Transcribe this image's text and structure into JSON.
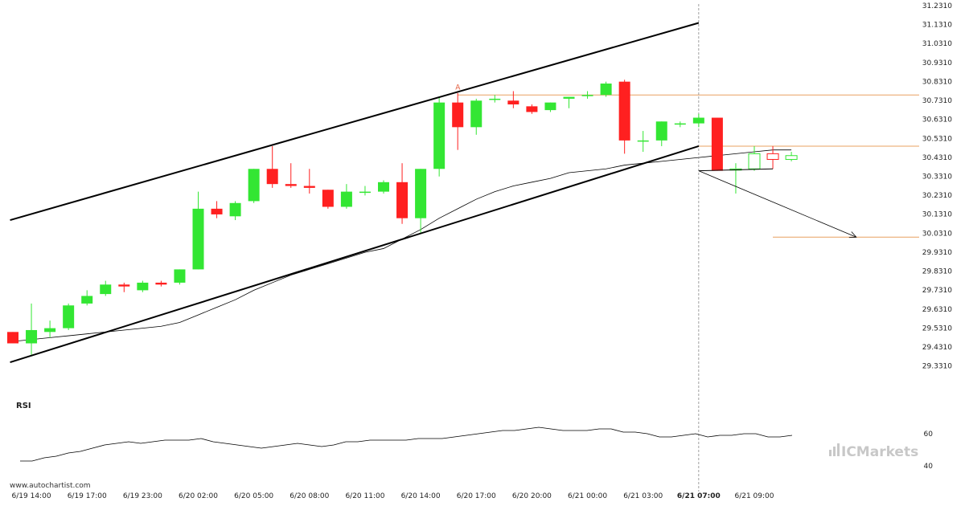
{
  "chart_data": {
    "type": "candlestick",
    "price_axis": {
      "ylim": [
        29.253,
        31.231
      ],
      "ticks": [
        "31.2310",
        "31.1310",
        "31.0310",
        "30.9310",
        "30.8310",
        "30.7310",
        "30.6310",
        "30.5310",
        "30.4310",
        "30.3310",
        "30.2310",
        "30.1310",
        "30.0310",
        "29.9310",
        "29.8310",
        "29.7310",
        "29.6310",
        "29.5310",
        "29.4310",
        "29.3310"
      ]
    },
    "x_ticks": [
      {
        "bar": 1,
        "label": "6/19 14:00"
      },
      {
        "bar": 4,
        "label": "6/19 17:00"
      },
      {
        "bar": 7,
        "label": "6/19 23:00"
      },
      {
        "bar": 10,
        "label": "6/20 02:00"
      },
      {
        "bar": 13,
        "label": "6/20 05:00"
      },
      {
        "bar": 16,
        "label": "6/20 08:00"
      },
      {
        "bar": 19,
        "label": "6/20 11:00"
      },
      {
        "bar": 22,
        "label": "6/20 14:00"
      },
      {
        "bar": 25,
        "label": "6/20 17:00"
      },
      {
        "bar": 28,
        "label": "6/20 20:00"
      },
      {
        "bar": 31,
        "label": "6/21 00:00"
      },
      {
        "bar": 34,
        "label": "6/21 03:00"
      },
      {
        "bar": 37,
        "label": "6/21 07:00",
        "bold": true
      },
      {
        "bar": 40,
        "label": "6/21 09:00"
      }
    ],
    "candles": [
      {
        "o": 29.51,
        "h": 29.51,
        "l": 29.45,
        "c": 29.45
      },
      {
        "o": 29.45,
        "h": 29.66,
        "l": 29.39,
        "c": 29.52
      },
      {
        "o": 29.51,
        "h": 29.57,
        "l": 29.48,
        "c": 29.53
      },
      {
        "o": 29.53,
        "h": 29.66,
        "l": 29.52,
        "c": 29.65
      },
      {
        "o": 29.66,
        "h": 29.73,
        "l": 29.65,
        "c": 29.7
      },
      {
        "o": 29.71,
        "h": 29.78,
        "l": 29.7,
        "c": 29.76
      },
      {
        "o": 29.76,
        "h": 29.77,
        "l": 29.72,
        "c": 29.75
      },
      {
        "o": 29.73,
        "h": 29.78,
        "l": 29.72,
        "c": 29.77
      },
      {
        "o": 29.77,
        "h": 29.78,
        "l": 29.75,
        "c": 29.76
      },
      {
        "o": 29.77,
        "h": 29.84,
        "l": 29.76,
        "c": 29.84
      },
      {
        "o": 29.84,
        "h": 30.25,
        "l": 29.84,
        "c": 30.16
      },
      {
        "o": 30.16,
        "h": 30.2,
        "l": 30.11,
        "c": 30.13
      },
      {
        "o": 30.12,
        "h": 30.2,
        "l": 30.1,
        "c": 30.19
      },
      {
        "o": 30.2,
        "h": 30.37,
        "l": 30.19,
        "c": 30.37
      },
      {
        "o": 30.37,
        "h": 30.49,
        "l": 30.27,
        "c": 30.29
      },
      {
        "o": 30.29,
        "h": 30.4,
        "l": 30.27,
        "c": 30.28
      },
      {
        "o": 30.28,
        "h": 30.37,
        "l": 30.24,
        "c": 30.27
      },
      {
        "o": 30.26,
        "h": 30.26,
        "l": 30.16,
        "c": 30.17
      },
      {
        "o": 30.17,
        "h": 30.29,
        "l": 30.16,
        "c": 30.25
      },
      {
        "o": 30.25,
        "h": 30.28,
        "l": 30.23,
        "c": 30.25
      },
      {
        "o": 30.25,
        "h": 30.31,
        "l": 30.24,
        "c": 30.3
      },
      {
        "o": 30.3,
        "h": 30.4,
        "l": 30.08,
        "c": 30.11
      },
      {
        "o": 30.11,
        "h": 30.37,
        "l": 30.03,
        "c": 30.37
      },
      {
        "o": 30.37,
        "h": 30.75,
        "l": 30.33,
        "c": 30.72
      },
      {
        "o": 30.72,
        "h": 30.77,
        "l": 30.47,
        "c": 30.59
      },
      {
        "o": 30.59,
        "h": 30.74,
        "l": 30.55,
        "c": 30.73
      },
      {
        "o": 30.74,
        "h": 30.76,
        "l": 30.72,
        "c": 30.74
      },
      {
        "o": 30.73,
        "h": 30.78,
        "l": 30.69,
        "c": 30.71
      },
      {
        "o": 30.7,
        "h": 30.71,
        "l": 30.66,
        "c": 30.67
      },
      {
        "o": 30.68,
        "h": 30.72,
        "l": 30.67,
        "c": 30.72
      },
      {
        "o": 30.74,
        "h": 30.75,
        "l": 30.69,
        "c": 30.75
      },
      {
        "o": 30.76,
        "h": 30.78,
        "l": 30.74,
        "c": 30.76
      },
      {
        "o": 30.76,
        "h": 30.83,
        "l": 30.75,
        "c": 30.82
      },
      {
        "o": 30.83,
        "h": 30.84,
        "l": 30.45,
        "c": 30.52
      },
      {
        "o": 30.52,
        "h": 30.57,
        "l": 30.46,
        "c": 30.52
      },
      {
        "o": 30.52,
        "h": 30.62,
        "l": 30.49,
        "c": 30.62
      },
      {
        "o": 30.61,
        "h": 30.62,
        "l": 30.59,
        "c": 30.61
      },
      {
        "o": 30.61,
        "h": 30.66,
        "l": 30.59,
        "c": 30.64
      },
      {
        "o": 30.64,
        "h": 30.64,
        "l": 30.36,
        "c": 30.36
      },
      {
        "o": 30.37,
        "h": 30.4,
        "l": 30.24,
        "c": 30.37
      },
      {
        "o": 30.37,
        "h": 30.49,
        "l": 30.36,
        "c": 30.45
      },
      {
        "o": 30.45,
        "h": 30.49,
        "l": 30.37,
        "c": 30.42
      },
      {
        "o": 30.42,
        "h": 30.46,
        "l": 30.41,
        "c": 30.44
      }
    ],
    "moving_average": [
      29.46,
      29.47,
      29.48,
      29.49,
      29.5,
      29.51,
      29.52,
      29.53,
      29.54,
      29.56,
      29.6,
      29.64,
      29.68,
      29.73,
      29.77,
      29.81,
      29.84,
      29.87,
      29.9,
      29.93,
      29.95,
      30.0,
      30.05,
      30.11,
      30.16,
      30.21,
      30.25,
      30.28,
      30.3,
      30.32,
      30.35,
      30.36,
      30.37,
      30.39,
      30.4,
      30.41,
      30.42,
      30.43,
      30.44,
      30.45,
      30.46,
      30.47,
      30.47
    ],
    "channel": {
      "upper": [
        {
          "bar": -0.15,
          "price": 30.1
        },
        {
          "bar": 37,
          "price": 31.14
        }
      ],
      "lower": [
        {
          "bar": -0.15,
          "price": 29.35
        },
        {
          "bar": 37,
          "price": 30.49
        }
      ]
    },
    "triangle_lower": [
      {
        "bar": 37,
        "price": 30.36
      },
      {
        "bar": 41,
        "price": 30.37
      }
    ],
    "resistance_level": {
      "price": 30.76,
      "from_bar": 24
    },
    "support_level": {
      "price": 30.49,
      "from_bar": 37
    },
    "target_level": {
      "price": 30.01,
      "from_bar": 41
    },
    "forecast_arrow": [
      {
        "bar": 37,
        "price": 30.36
      },
      {
        "bar": 45.5,
        "price": 30.01
      }
    ],
    "current_time_bar": 37,
    "marker": {
      "bar": 24,
      "price": 30.78,
      "label": "A"
    },
    "rsi": {
      "label": "RSI",
      "ylim": [
        30,
        70
      ],
      "ticks": [
        "60",
        "40"
      ],
      "values": [
        null,
        43,
        43,
        45,
        46,
        48,
        49,
        51,
        53,
        54,
        55,
        54,
        55,
        56,
        56,
        56,
        57,
        55,
        54,
        53,
        52,
        51,
        52,
        53,
        54,
        53,
        52,
        53,
        55,
        55,
        56,
        56,
        56,
        56,
        57,
        57,
        57,
        58,
        59,
        60,
        61,
        62,
        62,
        63,
        64,
        63,
        62,
        62,
        62,
        63,
        63,
        61,
        61,
        60,
        58,
        58,
        59,
        60,
        58,
        59,
        59,
        60,
        60,
        58,
        58,
        59
      ]
    }
  },
  "footer": {
    "source": "www.autochartist.com",
    "brand": "ICMarkets"
  },
  "colors": {
    "bull": "#33e633",
    "bear": "#ff2020",
    "level": "#e8a060",
    "line": "#000000"
  }
}
